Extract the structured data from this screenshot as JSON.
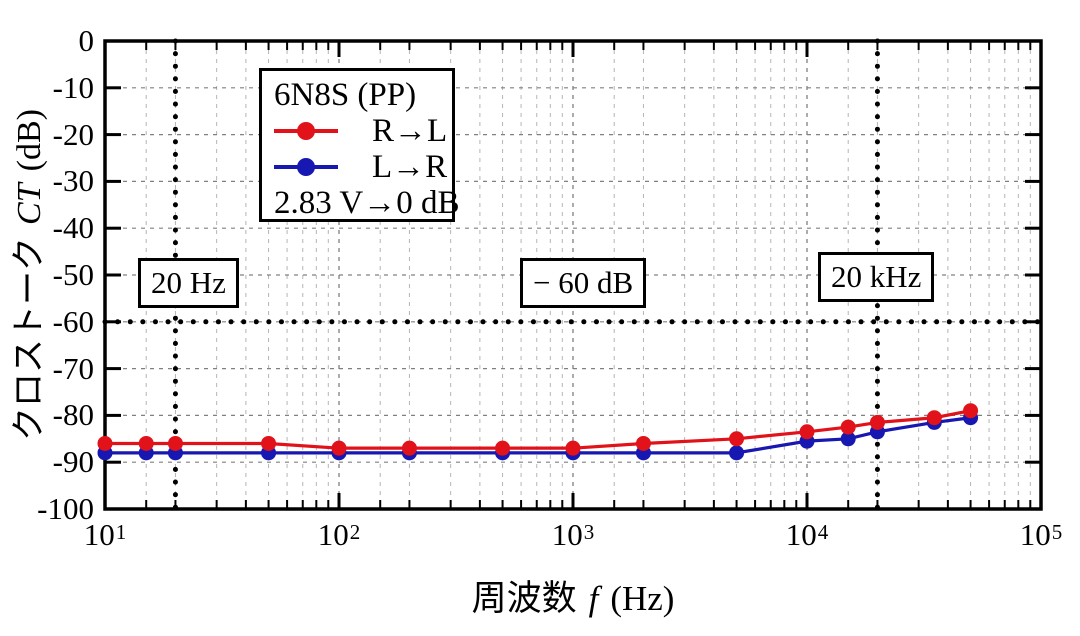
{
  "chart_data": {
    "type": "line",
    "x_scale": "log",
    "xlim": [
      10,
      100000
    ],
    "ylim": [
      -100,
      0
    ],
    "grid": "dashed major+minor (log minors incl. 1.5x)",
    "xlabel_parts": {
      "prefix": "周波数",
      "symbol": "f",
      "suffix": "(Hz)"
    },
    "ylabel_parts": {
      "prefix": "クロストーク",
      "symbol": "CT",
      "suffix": "(dB)"
    },
    "x_ticks": [
      {
        "base": "10",
        "exp": "1",
        "value": 10
      },
      {
        "base": "10",
        "exp": "2",
        "value": 100
      },
      {
        "base": "10",
        "exp": "3",
        "value": 1000
      },
      {
        "base": "10",
        "exp": "4",
        "value": 10000
      },
      {
        "base": "10",
        "exp": "5",
        "value": 100000
      }
    ],
    "y_ticks": [
      0,
      -10,
      -20,
      -30,
      -40,
      -50,
      -60,
      -70,
      -80,
      -90,
      -100
    ],
    "x": [
      10,
      15,
      20,
      50,
      100,
      200,
      500,
      1000,
      2000,
      5000,
      10000,
      15000,
      20000,
      35000,
      50000
    ],
    "series": [
      {
        "name": "R→L",
        "color": "#e11219",
        "values": [
          -86,
          -86,
          -86,
          -86,
          -87,
          -87,
          -87,
          -87,
          -86,
          -85,
          -83.5,
          -82.5,
          -81.5,
          -80.5,
          -79
        ]
      },
      {
        "name": "L→R",
        "color": "#1717b2",
        "values": [
          -88,
          -88,
          -88,
          -88,
          -88,
          -88,
          -88,
          -88,
          -88,
          -88,
          -85.5,
          -85,
          -83.5,
          -81.5,
          -80.5
        ]
      }
    ],
    "legend": {
      "title": "6N8S (PP)",
      "note": "2.83 V→0 dB",
      "position": "upper-left"
    },
    "annotations": {
      "v_lines": [
        {
          "x": 20,
          "label": "20 Hz"
        },
        {
          "x": 20000,
          "label": "20 kHz"
        }
      ],
      "h_lines": [
        {
          "y": -60,
          "label": "− 60 dB"
        }
      ]
    },
    "colors": {
      "frame": "#000000",
      "grid_major": "#808080",
      "grid_minor": "#b5b5b5",
      "annotation_line": "#000000"
    }
  }
}
